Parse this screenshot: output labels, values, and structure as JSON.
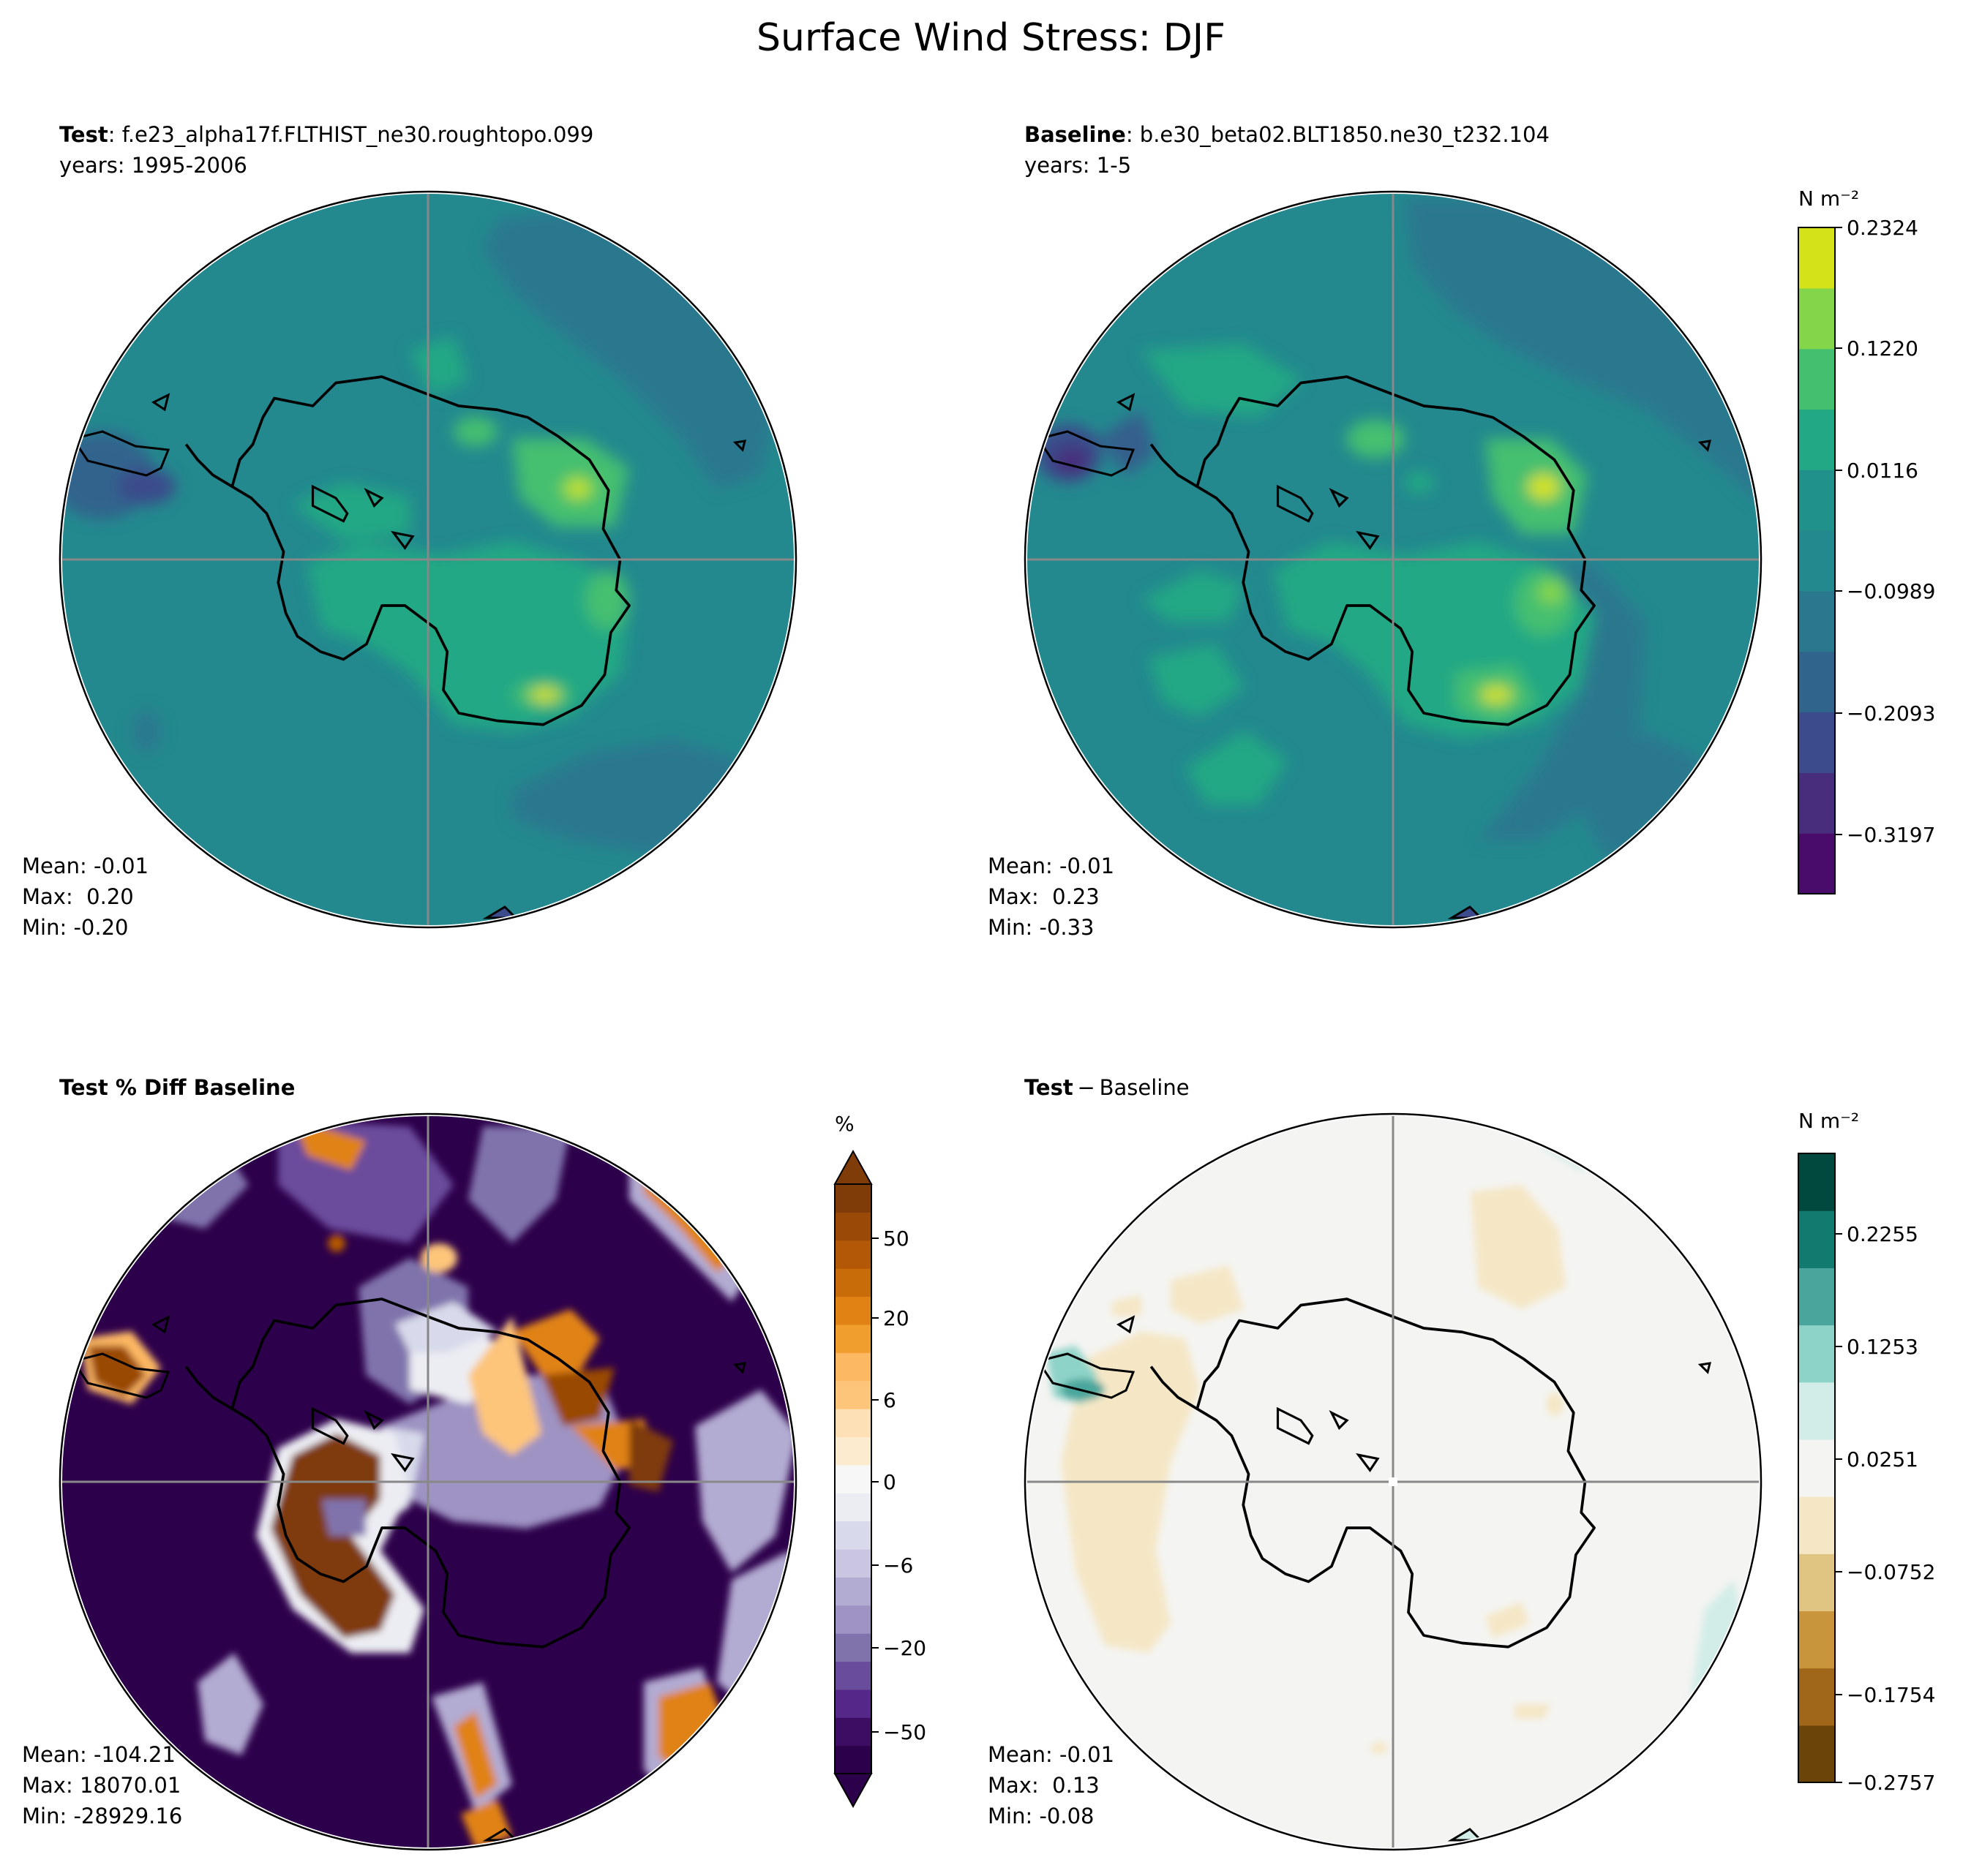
{
  "figure": {
    "title": "Surface Wind Stress: DJF"
  },
  "panels": [
    {
      "id": "test",
      "title_bold": "Test",
      "title_rest": ": f.e23_alpha17f.FLTHIST_ne30.roughtopo.099",
      "subtitle": "years: 1995-2006",
      "stats": {
        "mean": "Mean: -0.01",
        "max": "Max:  0.20",
        "min": "Min: -0.20"
      }
    },
    {
      "id": "baseline",
      "title_bold": "Baseline",
      "title_rest": ": b.e30_beta02.BLT1850.ne30_t232.104",
      "subtitle": "years: 1-5",
      "stats": {
        "mean": "Mean: -0.01",
        "max": "Max:  0.23",
        "min": "Min: -0.33"
      }
    },
    {
      "id": "pctdiff",
      "title_bold": "Test % Diff Baseline",
      "title_rest": "",
      "subtitle": "",
      "stats": {
        "mean": "Mean: -104.21",
        "max": "Max: 18070.01",
        "min": "Min: -28929.16"
      }
    },
    {
      "id": "diff",
      "title_bold": "Test",
      "title_rest": " − Baseline",
      "subtitle": "",
      "stats": {
        "mean": "Mean: -0.01",
        "max": "Max:  0.13",
        "min": "Min: -0.08"
      }
    }
  ],
  "colorbars": {
    "main": {
      "unit": "N m⁻²",
      "colors": [
        "#440154",
        "#482475",
        "#414487",
        "#355f8d",
        "#2a788e",
        "#21918c",
        "#22a884",
        "#44bf70",
        "#7ad151",
        "#bddf26",
        "#fde725"
      ],
      "shown_colors": [
        "#4a0c6b",
        "#472d7b",
        "#3b4b8b",
        "#31648d",
        "#2a788e",
        "#23898e",
        "#21918c",
        "#22a884",
        "#44bf70",
        "#85d54a",
        "#d4e21a"
      ],
      "tick_labels": [
        "−0.3197",
        "−0.2093",
        "−0.0989",
        "0.0116",
        "0.1220",
        "0.2324"
      ]
    },
    "pct": {
      "unit": "%",
      "colors": [
        "#2d004b",
        "#3d0d64",
        "#542788",
        "#6a4c9c",
        "#8073ac",
        "#9e93c3",
        "#b2abd2",
        "#cac6e1",
        "#d8daeb",
        "#ecedf3",
        "#f7f7f7",
        "#fdebd0",
        "#fee0b6",
        "#fdc57a",
        "#fdb863",
        "#f09e2d",
        "#e08214",
        "#c86c0a",
        "#b35806",
        "#9a4906",
        "#7f3b08"
      ],
      "tick_labels": [
        "−50",
        "−20",
        "−6",
        "0",
        "6",
        "20",
        "50"
      ]
    },
    "diff": {
      "unit": "N m⁻²",
      "colors": [
        "#6b4409",
        "#a0661a",
        "#c8943c",
        "#e0c482",
        "#f5e7c6",
        "#f4f4f2",
        "#d2ede8",
        "#8ed3c8",
        "#4aa69c",
        "#137a70",
        "#01493f"
      ],
      "tick_labels": [
        "−0.2757",
        "−0.1754",
        "−0.0752",
        "0.0251",
        "0.1253",
        "0.2255"
      ]
    }
  }
}
